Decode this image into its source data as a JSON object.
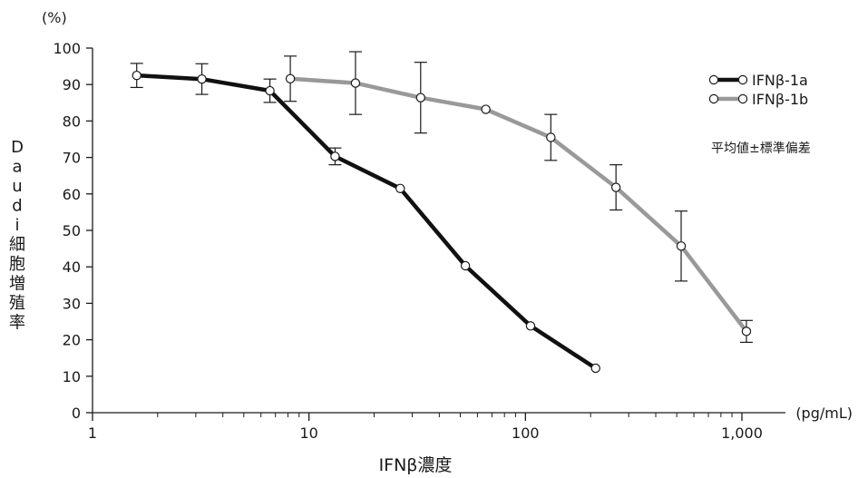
{
  "chart_data": {
    "type": "line",
    "title": "",
    "xlabel": "IFNβ濃度",
    "x_unit": "(pg/mL)",
    "ylabel": "Daudi細胞増殖率",
    "y_unit": "(%)",
    "x_scale": "log",
    "xlim": [
      1,
      1000
    ],
    "ylim": [
      0,
      100
    ],
    "x_ticks": [
      1,
      10,
      100,
      1000
    ],
    "x_tick_labels": [
      "1",
      "10",
      "100",
      "1,000"
    ],
    "y_ticks": [
      0,
      10,
      20,
      30,
      40,
      50,
      60,
      70,
      80,
      90,
      100
    ],
    "y_tick_labels": [
      "0",
      "10",
      "20",
      "30",
      "40",
      "50",
      "60",
      "70",
      "80",
      "90",
      "100"
    ],
    "grid": false,
    "legend_position": "top-right",
    "annotation": "平均値±標準偏差",
    "series": [
      {
        "name": "IFNβ-1a",
        "color": "#111111",
        "points": [
          {
            "x": 1.6,
            "y": 92.5,
            "err": 3.3
          },
          {
            "x": 3.2,
            "y": 91.5,
            "err": 4.2
          },
          {
            "x": 6.6,
            "y": 88.3,
            "err": 3.2
          },
          {
            "x": 13.2,
            "y": 70.3,
            "err": 2.3
          },
          {
            "x": 26.4,
            "y": 61.5,
            "err": null
          },
          {
            "x": 52.8,
            "y": 40.3,
            "err": null
          },
          {
            "x": 105.6,
            "y": 23.8,
            "err": null
          },
          {
            "x": 211,
            "y": 12.2,
            "err": null
          }
        ]
      },
      {
        "name": "IFNβ-1b",
        "color": "#999999",
        "points": [
          {
            "x": 8.2,
            "y": 91.6,
            "err": 6.2
          },
          {
            "x": 16.4,
            "y": 90.4,
            "err": 8.6
          },
          {
            "x": 32.8,
            "y": 86.4,
            "err": 9.7
          },
          {
            "x": 65.6,
            "y": 83.2,
            "err": null
          },
          {
            "x": 131,
            "y": 75.5,
            "err": 6.3
          },
          {
            "x": 262,
            "y": 61.8,
            "err": 6.2
          },
          {
            "x": 524,
            "y": 45.7,
            "err": 9.6
          },
          {
            "x": 1049,
            "y": 22.3,
            "err": 3.0
          }
        ]
      }
    ]
  }
}
